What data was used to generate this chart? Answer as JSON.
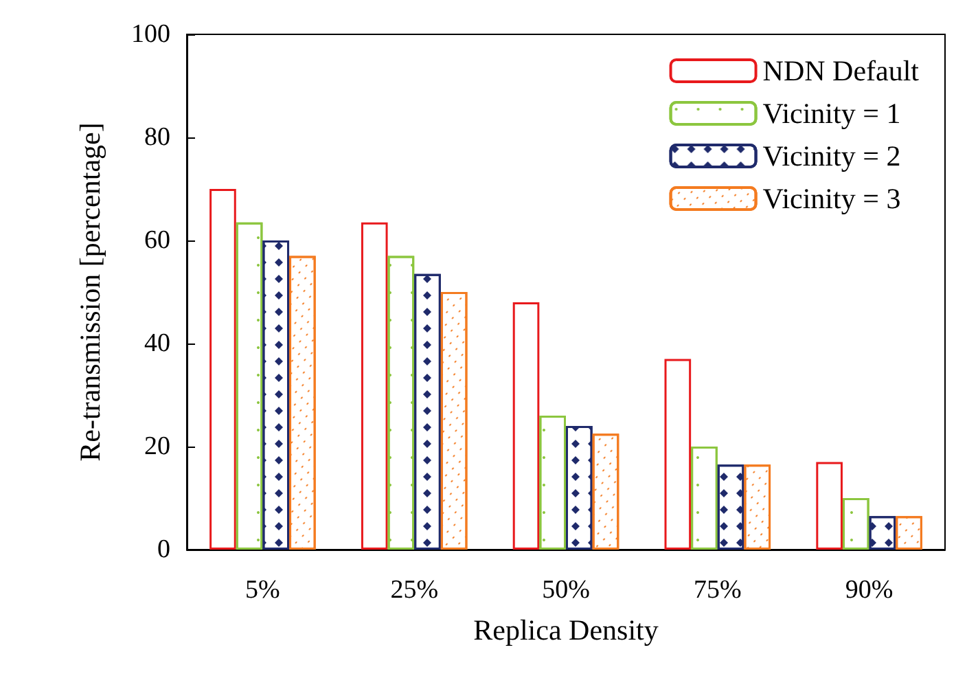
{
  "chart_data": {
    "type": "bar",
    "xlabel": "Replica Density",
    "ylabel": "Re-transmission [percentage]",
    "categories": [
      "5%",
      "25%",
      "50%",
      "75%",
      "90%"
    ],
    "ylim": [
      0,
      100
    ],
    "yticks": [
      0,
      20,
      40,
      60,
      80,
      100
    ],
    "grid": false,
    "legend": "top right",
    "series": [
      {
        "name": "NDN Default",
        "color": "#e8191c",
        "values": [
          70,
          63.5,
          48,
          37,
          17
        ]
      },
      {
        "name": "Vicinity = 1",
        "color": "#8cc63f",
        "values": [
          63.5,
          57,
          26,
          20,
          10
        ]
      },
      {
        "name": "Vicinity = 2",
        "color": "#1f2a6b",
        "values": [
          60,
          53.5,
          24,
          16.5,
          6.5
        ]
      },
      {
        "name": "Vicinity = 3",
        "color": "#f47b20",
        "values": [
          57,
          50,
          22.5,
          16.5,
          6.5
        ]
      }
    ]
  }
}
